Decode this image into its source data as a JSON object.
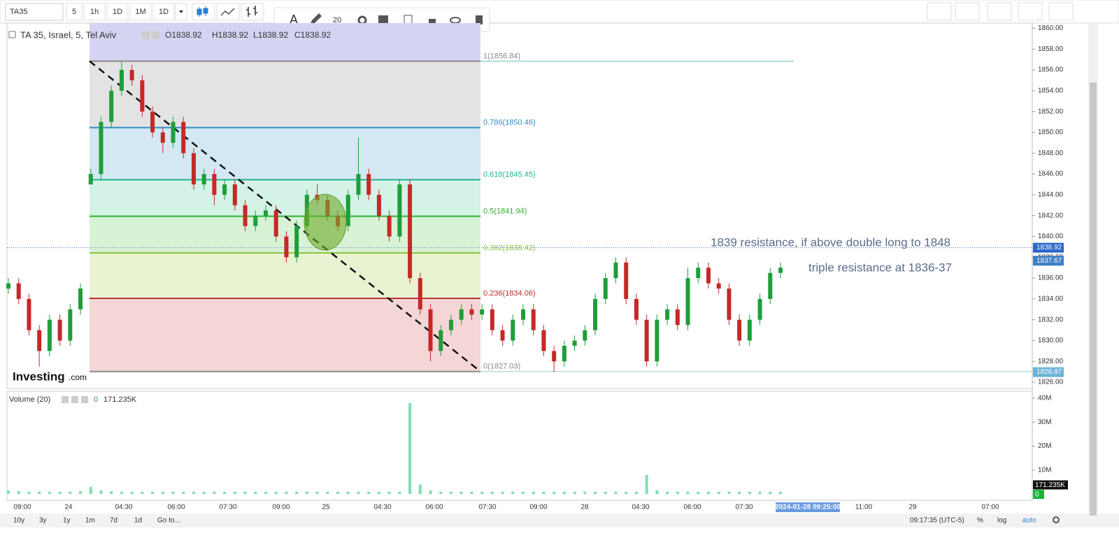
{
  "toolbar": {
    "symbol": "TA35",
    "intervals": [
      "5",
      "1h",
      "1D",
      "1M",
      "1D"
    ],
    "font_size": "20"
  },
  "chart": {
    "title": "TA 35, Israel, 5, Tel Aviv",
    "ohlc": [
      "O1838.92",
      "H1838.92",
      "L1838.92",
      "C1838.92"
    ],
    "logo": [
      "Investing",
      ".com"
    ],
    "ylim": [
      1825.4,
      1860.5
    ],
    "yticks": [
      {
        "value": 1826,
        "label": "1826.00"
      },
      {
        "value": 1828,
        "label": "1828.00"
      },
      {
        "value": 1830,
        "label": "1830.00"
      },
      {
        "value": 1832,
        "label": "1832.00"
      },
      {
        "value": 1834,
        "label": "1834.00"
      },
      {
        "value": 1836,
        "label": "1836.00"
      },
      {
        "value": 1838,
        "label": "1838.00"
      },
      {
        "value": 1840,
        "label": "1840.00"
      },
      {
        "value": 1842,
        "label": "1842.00"
      },
      {
        "value": 1844,
        "label": "1844.00"
      },
      {
        "value": 1846,
        "label": "1846.00"
      },
      {
        "value": 1848,
        "label": "1848.00"
      },
      {
        "value": 1850,
        "label": "1850.00"
      },
      {
        "value": 1852,
        "label": "1852.00"
      },
      {
        "value": 1854,
        "label": "1854.00"
      },
      {
        "value": 1856,
        "label": "1856.00"
      },
      {
        "value": 1858,
        "label": "1858.00"
      },
      {
        "value": 1860,
        "label": "1860.00"
      }
    ],
    "up_color": "#1e9e3a",
    "down_color": "#c62828",
    "candles": [
      [
        1835,
        1836,
        1834.5,
        1835.5
      ],
      [
        1835.5,
        1836,
        1833.5,
        1834
      ],
      [
        1834,
        1834.5,
        1830.5,
        1831
      ],
      [
        1831,
        1831.5,
        1827.5,
        1829
      ],
      [
        1829,
        1832.5,
        1828.5,
        1832
      ],
      [
        1832,
        1832.5,
        1829.5,
        1830
      ],
      [
        1830,
        1833.5,
        1829.5,
        1833
      ],
      [
        1833,
        1835.5,
        1832.5,
        1835
      ],
      [
        1845,
        1846.5,
        1845,
        1846
      ],
      [
        1846,
        1851.5,
        1845.5,
        1851
      ],
      [
        1851,
        1854.5,
        1850.5,
        1854
      ],
      [
        1854,
        1856.8,
        1853.5,
        1856
      ],
      [
        1856,
        1856.5,
        1854.5,
        1855
      ],
      [
        1855,
        1855.5,
        1851.5,
        1852
      ],
      [
        1852,
        1852.5,
        1849.5,
        1850
      ],
      [
        1850,
        1850.5,
        1848,
        1849
      ],
      [
        1849,
        1851.5,
        1848.5,
        1851
      ],
      [
        1851,
        1851.5,
        1847.5,
        1848
      ],
      [
        1848,
        1848.5,
        1844.5,
        1845
      ],
      [
        1845,
        1846.5,
        1844.5,
        1846
      ],
      [
        1846,
        1846.5,
        1843,
        1844
      ],
      [
        1844,
        1845.5,
        1843.5,
        1845
      ],
      [
        1845,
        1845.5,
        1842.5,
        1843
      ],
      [
        1843,
        1843.5,
        1840.5,
        1841
      ],
      [
        1841,
        1842.5,
        1840.5,
        1842
      ],
      [
        1842,
        1843,
        1841.5,
        1842.5
      ],
      [
        1842.5,
        1843,
        1839.5,
        1840
      ],
      [
        1840,
        1840.5,
        1837.5,
        1838
      ],
      [
        1838,
        1841.5,
        1837.5,
        1841
      ],
      [
        1841,
        1844.5,
        1840.5,
        1844
      ],
      [
        1844,
        1845,
        1843,
        1843.5
      ],
      [
        1843.5,
        1844,
        1841.5,
        1842
      ],
      [
        1842,
        1842.5,
        1840.5,
        1841
      ],
      [
        1841,
        1844.5,
        1840.5,
        1844
      ],
      [
        1844,
        1849.5,
        1843.5,
        1846
      ],
      [
        1846,
        1846.5,
        1843.5,
        1844
      ],
      [
        1844,
        1844.5,
        1841.5,
        1842
      ],
      [
        1842,
        1842.5,
        1839.5,
        1840
      ],
      [
        1840,
        1845.5,
        1839.5,
        1845
      ],
      [
        1845,
        1845.5,
        1835.5,
        1836
      ],
      [
        1836,
        1836.5,
        1832.5,
        1833
      ],
      [
        1833,
        1833.5,
        1828,
        1829
      ],
      [
        1829,
        1831.5,
        1828.5,
        1831
      ],
      [
        1831,
        1832.5,
        1830.5,
        1832
      ],
      [
        1832,
        1833.5,
        1831.5,
        1833
      ],
      [
        1833,
        1833.5,
        1832,
        1832.5
      ],
      [
        1832.5,
        1833.5,
        1832,
        1833
      ],
      [
        1833,
        1833.5,
        1830.5,
        1831
      ],
      [
        1831,
        1831.5,
        1829.5,
        1830
      ],
      [
        1830,
        1832.5,
        1829.5,
        1832
      ],
      [
        1832,
        1833.5,
        1831.5,
        1833
      ],
      [
        1833,
        1833.5,
        1830.5,
        1831
      ],
      [
        1831,
        1831.5,
        1828.5,
        1829
      ],
      [
        1829,
        1829.5,
        1827,
        1828
      ],
      [
        1828,
        1830,
        1827.5,
        1829.5
      ],
      [
        1829.5,
        1830.5,
        1829,
        1830
      ],
      [
        1830,
        1831.5,
        1829.5,
        1831
      ],
      [
        1831,
        1834.5,
        1830.5,
        1834
      ],
      [
        1834,
        1836.5,
        1833.5,
        1836
      ],
      [
        1836,
        1838,
        1835.5,
        1837.5
      ],
      [
        1837.5,
        1838,
        1833.5,
        1834
      ],
      [
        1834,
        1834.5,
        1831.5,
        1832
      ],
      [
        1832,
        1832.5,
        1827.5,
        1828
      ],
      [
        1828,
        1832.5,
        1827.5,
        1832
      ],
      [
        1832,
        1833.5,
        1831.5,
        1833
      ],
      [
        1833,
        1833.5,
        1831,
        1831.5
      ],
      [
        1831.5,
        1837,
        1831,
        1836
      ],
      [
        1836,
        1837.5,
        1835.5,
        1837
      ],
      [
        1837,
        1837.5,
        1835,
        1835.5
      ],
      [
        1835.5,
        1836,
        1834.5,
        1835
      ],
      [
        1835,
        1835.5,
        1831.5,
        1832
      ],
      [
        1832,
        1832.5,
        1829.5,
        1830
      ],
      [
        1830,
        1832.5,
        1829.5,
        1832
      ],
      [
        1832,
        1834.5,
        1831.5,
        1834
      ],
      [
        1834,
        1837,
        1833.5,
        1836.5
      ],
      [
        1836.5,
        1837.5,
        1836,
        1837
      ]
    ],
    "fib": [
      {
        "label": "1(1856.84)",
        "price": 1856.84,
        "color": "#8a8a8a"
      },
      {
        "label": "0.786(1850.46)",
        "price": 1850.46,
        "color": "#2a8fc4"
      },
      {
        "label": "0.618(1845.45)",
        "price": 1845.45,
        "color": "#22b58f"
      },
      {
        "label": "0.5(1841.94)",
        "price": 1841.94,
        "color": "#2bb52b"
      },
      {
        "label": "0.382(1838.42)",
        "price": 1838.42,
        "color": "#8cc43a"
      },
      {
        "label": "0.236(1834.06)",
        "price": 1834.06,
        "color": "#c03030"
      },
      {
        "label": "0(1827.03)",
        "price": 1827.03,
        "color": "#8a8a8a"
      }
    ],
    "price_tags": [
      {
        "value": 1838.92,
        "color": "#2b67c9"
      },
      {
        "value": 1837.67,
        "color": "#3d7fc7"
      },
      {
        "value": 1826.97,
        "color": "#6bb3d6"
      }
    ],
    "annotations": [
      "1839 resistance, if above double long to 1848",
      "triple resistance at 1836-37"
    ]
  },
  "volume": {
    "title": "Volume (20)",
    "value1": "0",
    "value2": "171.235K",
    "color": "#7fe0b0",
    "ylim": [
      -2600000,
      42300000
    ],
    "yticks": [
      {
        "value": 10000000,
        "label": "10M"
      },
      {
        "value": 20000000,
        "label": "20M"
      },
      {
        "value": 30000000,
        "label": "30M"
      },
      {
        "value": 40000000,
        "label": "40M"
      }
    ],
    "values": [
      1500000,
      1200000,
      1000000,
      1000000,
      1000000,
      1000000,
      1000000,
      1200000,
      3000000,
      1500000,
      1200000,
      1000000,
      1000000,
      1000000,
      1000000,
      1000000,
      1000000,
      1000000,
      1000000,
      1000000,
      1000000,
      1000000,
      1000000,
      1000000,
      1000000,
      1000000,
      1000000,
      1000000,
      1000000,
      1000000,
      1000000,
      1000000,
      1000000,
      1000000,
      1000000,
      1000000,
      1000000,
      1000000,
      1000000,
      38000000,
      4000000,
      1500000,
      1000000,
      1000000,
      1000000,
      1000000,
      1000000,
      1000000,
      1000000,
      1000000,
      1000000,
      1000000,
      1000000,
      1000000,
      1000000,
      1000000,
      1000000,
      1000000,
      1000000,
      1000000,
      1000000,
      1000000,
      8000000,
      1500000,
      1000000,
      1000000,
      1000000,
      1000000,
      1000000,
      1000000,
      1000000,
      1000000,
      1000000,
      1000000,
      1000000,
      1000000
    ],
    "tags": [
      {
        "value": 171235,
        "label": "171.235K"
      },
      0
    ]
  },
  "time_axis": [
    "09:00",
    "24",
    "04:30",
    "06:00",
    "07:30",
    "09:00",
    "25",
    "04:30",
    "06:00",
    "07:30",
    "09:00",
    "28",
    "04:30",
    "06:00",
    "07:30",
    "2024-01-28 09:25:00",
    "11:00",
    "29",
    "07:00"
  ],
  "bottom_bar": {
    "ranges": [
      "10y",
      "3y",
      "1y",
      "1m",
      "7d",
      "1d"
    ],
    "goto": "Go to...",
    "clock": "09:17:35 (UTC-5)",
    "options": [
      "%",
      "log",
      "auto"
    ]
  }
}
